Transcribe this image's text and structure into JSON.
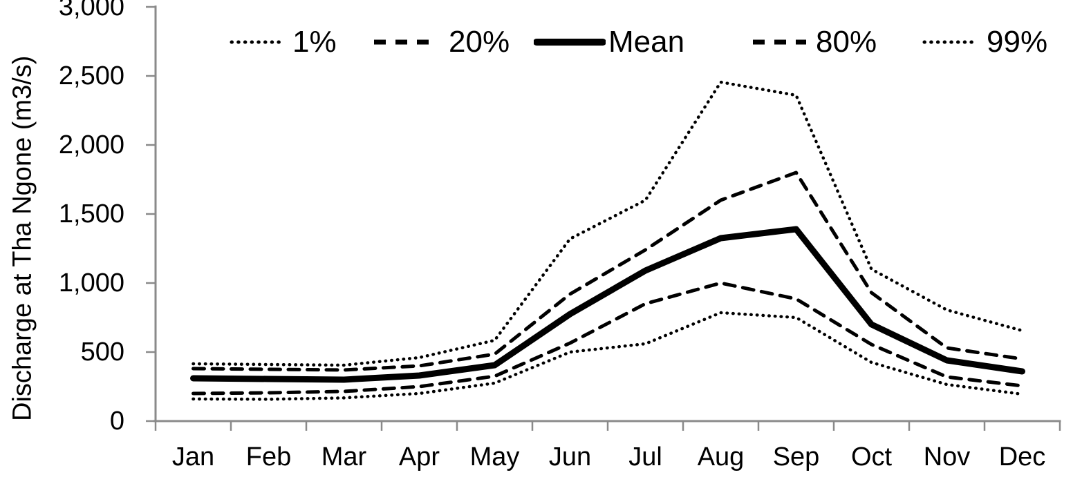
{
  "figure": {
    "background": "#ffffff",
    "axis_color": "#8a8a8a",
    "series_color": "#000000"
  },
  "chart_data": {
    "type": "line",
    "title": "",
    "xlabel": "",
    "ylabel": "Discharge at Tha Ngone (m3/s)",
    "grid": "off",
    "legend_position": "top",
    "ylim": [
      0,
      3000
    ],
    "ytick_step": 500,
    "ytick_labels": [
      "0",
      "500",
      "1,000",
      "1,500",
      "2,000",
      "2,500",
      "3,000"
    ],
    "categories": [
      "Jan",
      "Feb",
      "Mar",
      "Apr",
      "May",
      "Jun",
      "Jul",
      "Aug",
      "Sep",
      "Oct",
      "Nov",
      "Dec"
    ],
    "series": [
      {
        "name": "1%",
        "style": "dotted",
        "values": [
          415,
          410,
          405,
          460,
          585,
          1320,
          1600,
          2455,
          2360,
          1100,
          805,
          655
        ]
      },
      {
        "name": "20%",
        "style": "dashed",
        "values": [
          380,
          375,
          370,
          400,
          485,
          920,
          1240,
          1600,
          1800,
          930,
          530,
          450
        ]
      },
      {
        "name": "Mean",
        "style": "solid",
        "values": [
          310,
          305,
          300,
          330,
          405,
          775,
          1090,
          1325,
          1390,
          700,
          440,
          360
        ]
      },
      {
        "name": "80%",
        "style": "dashed",
        "values": [
          200,
          205,
          215,
          250,
          325,
          565,
          850,
          1000,
          885,
          555,
          320,
          255
        ]
      },
      {
        "name": "99%",
        "style": "dotted",
        "values": [
          160,
          158,
          168,
          200,
          275,
          500,
          560,
          785,
          750,
          425,
          265,
          195
        ]
      }
    ]
  }
}
